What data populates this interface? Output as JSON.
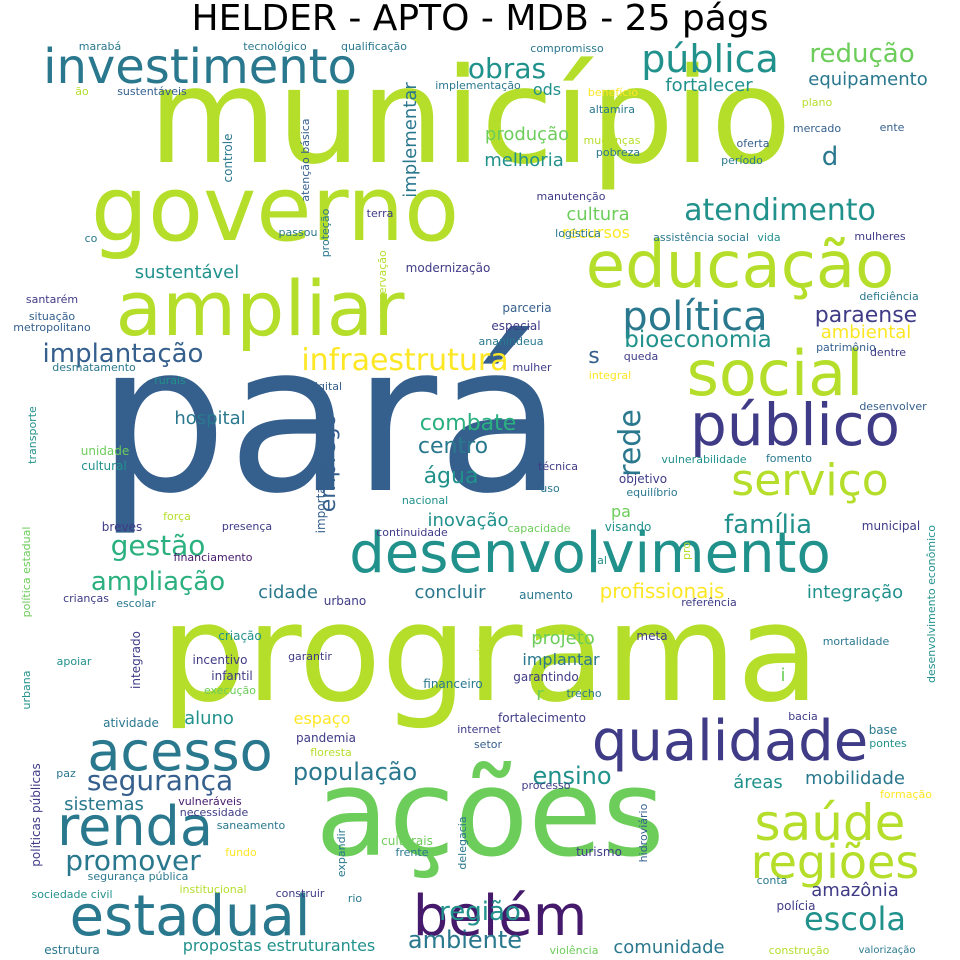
{
  "title": "HELDER - APTO - MDB - 25 págs",
  "palette": {
    "navy": "#45196b",
    "indigo": "#3f3b87",
    "blue": "#355f8d",
    "teal": "#2a788e",
    "cyan": "#21918c",
    "green": "#2bb07f",
    "lightgreen": "#6ccd5a",
    "lime": "#b5de2b",
    "yellow": "#fde725"
  },
  "words": [
    {
      "text": "pará",
      "color": "blue"
    },
    {
      "text": "município",
      "color": "lime"
    },
    {
      "text": "programa",
      "color": "lime"
    },
    {
      "text": "ações",
      "color": "lightgreen"
    },
    {
      "text": "governo",
      "color": "lime"
    },
    {
      "text": "desenvolvimento",
      "color": "cyan"
    },
    {
      "text": "ampliar",
      "color": "lime"
    },
    {
      "text": "educação",
      "color": "lime"
    },
    {
      "text": "investimento",
      "color": "teal"
    },
    {
      "text": "social",
      "color": "lime"
    },
    {
      "text": "público",
      "color": "indigo"
    },
    {
      "text": "qualidade",
      "color": "indigo"
    },
    {
      "text": "acesso",
      "color": "teal"
    },
    {
      "text": "estadual",
      "color": "teal"
    },
    {
      "text": "belém",
      "color": "navy"
    },
    {
      "text": "renda",
      "color": "teal"
    },
    {
      "text": "saúde",
      "color": "lime"
    },
    {
      "text": "regiões",
      "color": "lime"
    },
    {
      "text": "serviço",
      "color": "lime"
    },
    {
      "text": "pública",
      "color": "cyan"
    },
    {
      "text": "política",
      "color": "teal"
    },
    {
      "text": "atendimento",
      "color": "cyan"
    },
    {
      "text": "infraestrutura",
      "color": "yellow"
    },
    {
      "text": "segurança",
      "color": "blue"
    },
    {
      "text": "escola",
      "color": "cyan"
    },
    {
      "text": "promover",
      "color": "teal"
    },
    {
      "text": "gestão",
      "color": "green"
    },
    {
      "text": "bioeconomia",
      "color": "cyan"
    },
    {
      "text": "implantação",
      "color": "blue"
    },
    {
      "text": "redução",
      "color": "lightgreen"
    },
    {
      "text": "obras",
      "color": "cyan"
    },
    {
      "text": "paraense",
      "color": "indigo"
    },
    {
      "text": "população",
      "color": "teal"
    },
    {
      "text": "ampliação",
      "color": "green"
    },
    {
      "text": "região",
      "color": "cyan"
    },
    {
      "text": "ambiente",
      "color": "teal"
    },
    {
      "text": "combate",
      "color": "green"
    },
    {
      "text": "família",
      "color": "cyan"
    },
    {
      "text": "rede",
      "color": "teal"
    },
    {
      "text": "emprego",
      "color": "blue"
    },
    {
      "text": "centro",
      "color": "teal"
    },
    {
      "text": "água",
      "color": "cyan"
    },
    {
      "text": "ensino",
      "color": "cyan"
    },
    {
      "text": "sustentável",
      "color": "cyan"
    },
    {
      "text": "d",
      "color": "teal"
    },
    {
      "text": "hospital",
      "color": "teal"
    },
    {
      "text": "inovação",
      "color": "cyan"
    },
    {
      "text": "profissionais",
      "color": "yellow"
    },
    {
      "text": "integração",
      "color": "cyan"
    },
    {
      "text": "fortalecer",
      "color": "cyan"
    },
    {
      "text": "equipamento",
      "color": "teal"
    },
    {
      "text": "produção",
      "color": "lightgreen"
    },
    {
      "text": "melhoria",
      "color": "cyan"
    },
    {
      "text": "cultura",
      "color": "lightgreen"
    },
    {
      "text": "recursos",
      "color": "yellow"
    },
    {
      "text": "ambiental",
      "color": "yellow"
    },
    {
      "text": "s",
      "color": "blue"
    },
    {
      "text": "concluir",
      "color": "teal"
    },
    {
      "text": "cidade",
      "color": "teal"
    },
    {
      "text": "projeto",
      "color": "lightgreen"
    },
    {
      "text": "implantar",
      "color": "teal"
    },
    {
      "text": "mobilidade",
      "color": "teal"
    },
    {
      "text": "áreas",
      "color": "cyan"
    },
    {
      "text": "sistemas",
      "color": "teal"
    },
    {
      "text": "aluno",
      "color": "cyan"
    },
    {
      "text": "espaço",
      "color": "yellow"
    },
    {
      "text": "amazônia",
      "color": "indigo"
    },
    {
      "text": "comunidade",
      "color": "teal"
    },
    {
      "text": "propostas estruturantes",
      "color": "cyan"
    },
    {
      "text": "ods",
      "color": "cyan"
    },
    {
      "text": "implementar",
      "color": "teal"
    },
    {
      "text": "pa",
      "color": "lightgreen"
    },
    {
      "text": "r",
      "color": "lightgreen"
    },
    {
      "text": "i",
      "color": "lightgreen"
    },
    {
      "text": "marabá",
      "color": "teal"
    },
    {
      "text": "tecnológico",
      "color": "teal"
    },
    {
      "text": "qualificação",
      "color": "teal"
    },
    {
      "text": "compromisso",
      "color": "teal"
    },
    {
      "text": "ão",
      "color": "lime"
    },
    {
      "text": "sustentáveis",
      "color": "blue"
    },
    {
      "text": "implementação",
      "color": "teal"
    },
    {
      "text": "benefício",
      "color": "yellow"
    },
    {
      "text": "altamira",
      "color": "teal"
    },
    {
      "text": "plano",
      "color": "lime"
    },
    {
      "text": "controle",
      "color": "teal"
    },
    {
      "text": "atenção básica",
      "color": "blue"
    },
    {
      "text": "mudanças",
      "color": "lime"
    },
    {
      "text": "pobreza",
      "color": "teal"
    },
    {
      "text": "oferta",
      "color": "blue"
    },
    {
      "text": "período",
      "color": "teal"
    },
    {
      "text": "mercado",
      "color": "blue"
    },
    {
      "text": "ente",
      "color": "blue"
    },
    {
      "text": "manutenção",
      "color": "indigo"
    },
    {
      "text": "proteção",
      "color": "teal"
    },
    {
      "text": "terra",
      "color": "indigo"
    },
    {
      "text": "co",
      "color": "teal"
    },
    {
      "text": "passou",
      "color": "teal"
    },
    {
      "text": "logística",
      "color": "teal"
    },
    {
      "text": "assistência social",
      "color": "teal"
    },
    {
      "text": "vida",
      "color": "cyan"
    },
    {
      "text": "mulheres",
      "color": "indigo"
    },
    {
      "text": "conservação",
      "color": "lime"
    },
    {
      "text": "modernização",
      "color": "indigo"
    },
    {
      "text": "santarém",
      "color": "indigo"
    },
    {
      "text": "situação",
      "color": "blue"
    },
    {
      "text": "metropolitano",
      "color": "blue"
    },
    {
      "text": "parceria",
      "color": "blue"
    },
    {
      "text": "especial",
      "color": "indigo"
    },
    {
      "text": "ananindeua",
      "color": "teal"
    },
    {
      "text": "deficiência",
      "color": "teal"
    },
    {
      "text": "patrimônio",
      "color": "blue"
    },
    {
      "text": "dentre",
      "color": "indigo"
    },
    {
      "text": "desmatamento",
      "color": "teal"
    },
    {
      "text": "rurais",
      "color": "cyan"
    },
    {
      "text": "queda",
      "color": "indigo"
    },
    {
      "text": "mulher",
      "color": "indigo"
    },
    {
      "text": "integral",
      "color": "yellow"
    },
    {
      "text": "digital",
      "color": "blue"
    },
    {
      "text": "desenvolver",
      "color": "blue"
    },
    {
      "text": "transporte",
      "color": "cyan"
    },
    {
      "text": "unidade",
      "color": "lightgreen"
    },
    {
      "text": "cultural",
      "color": "cyan"
    },
    {
      "text": "técnica",
      "color": "indigo"
    },
    {
      "text": "objetivo",
      "color": "indigo"
    },
    {
      "text": "equilíbrio",
      "color": "teal"
    },
    {
      "text": "uso",
      "color": "teal"
    },
    {
      "text": "vulnerabilidade",
      "color": "cyan"
    },
    {
      "text": "fomento",
      "color": "teal"
    },
    {
      "text": "nacional",
      "color": "cyan"
    },
    {
      "text": "breves",
      "color": "indigo"
    },
    {
      "text": "força",
      "color": "lime"
    },
    {
      "text": "presença",
      "color": "indigo"
    },
    {
      "text": "importante",
      "color": "blue"
    },
    {
      "text": "continuidade",
      "color": "indigo"
    },
    {
      "text": "capacidade",
      "color": "lightgreen"
    },
    {
      "text": "visando",
      "color": "cyan"
    },
    {
      "text": "municipal",
      "color": "indigo"
    },
    {
      "text": "política estadual",
      "color": "lightgreen"
    },
    {
      "text": "financiamento",
      "color": "navy"
    },
    {
      "text": "al",
      "color": "cyan"
    },
    {
      "text": "pro",
      "color": "lime"
    },
    {
      "text": "desenvolvimento econômico",
      "color": "cyan"
    },
    {
      "text": "crianças",
      "color": "indigo"
    },
    {
      "text": "escolar",
      "color": "teal"
    },
    {
      "text": "urbano",
      "color": "indigo"
    },
    {
      "text": "aumento",
      "color": "teal"
    },
    {
      "text": "referência",
      "color": "indigo"
    },
    {
      "text": "criação",
      "color": "cyan"
    },
    {
      "text": "meta",
      "color": "indigo"
    },
    {
      "text": "criar",
      "color": "lime"
    },
    {
      "text": "mortalidade",
      "color": "teal"
    },
    {
      "text": "apoiar",
      "color": "cyan"
    },
    {
      "text": "integrado",
      "color": "indigo"
    },
    {
      "text": "incentivo",
      "color": "indigo"
    },
    {
      "text": "garantir",
      "color": "indigo"
    },
    {
      "text": "infantil",
      "color": "indigo"
    },
    {
      "text": "urbana",
      "color": "cyan"
    },
    {
      "text": "execução",
      "color": "lightgreen"
    },
    {
      "text": "financeiro",
      "color": "teal"
    },
    {
      "text": "garantindo",
      "color": "indigo"
    },
    {
      "text": "trecho",
      "color": "teal"
    },
    {
      "text": "atividade",
      "color": "teal"
    },
    {
      "text": "fortalecimento",
      "color": "indigo"
    },
    {
      "text": "bacia",
      "color": "indigo"
    },
    {
      "text": "internet",
      "color": "indigo"
    },
    {
      "text": "base",
      "color": "teal"
    },
    {
      "text": "pandemia",
      "color": "indigo"
    },
    {
      "text": "floresta",
      "color": "lime"
    },
    {
      "text": "setor",
      "color": "blue"
    },
    {
      "text": "pontes",
      "color": "cyan"
    },
    {
      "text": "paz",
      "color": "teal"
    },
    {
      "text": "vulneráveis",
      "color": "navy"
    },
    {
      "text": "necessidade",
      "color": "indigo"
    },
    {
      "text": "processo",
      "color": "indigo"
    },
    {
      "text": "políticas públicas",
      "color": "indigo"
    },
    {
      "text": "formação",
      "color": "yellow"
    },
    {
      "text": "saneamento",
      "color": "teal"
    },
    {
      "text": "hidroviário",
      "color": "blue"
    },
    {
      "text": "expandir",
      "color": "teal"
    },
    {
      "text": "delegacia",
      "color": "teal"
    },
    {
      "text": "culturais",
      "color": "lightgreen"
    },
    {
      "text": "frente",
      "color": "teal"
    },
    {
      "text": "turismo",
      "color": "indigo"
    },
    {
      "text": "segurança pública",
      "color": "teal"
    },
    {
      "text": "fundo",
      "color": "yellow"
    },
    {
      "text": "conta",
      "color": "teal"
    },
    {
      "text": "sociedade civil",
      "color": "cyan"
    },
    {
      "text": "institucional",
      "color": "lime"
    },
    {
      "text": "construir",
      "color": "indigo"
    },
    {
      "text": "rio",
      "color": "teal"
    },
    {
      "text": "polícia",
      "color": "indigo"
    },
    {
      "text": "estrutura",
      "color": "teal"
    },
    {
      "text": "violência",
      "color": "lightgreen"
    },
    {
      "text": "construção",
      "color": "lime"
    },
    {
      "text": "valorização",
      "color": "teal"
    }
  ]
}
